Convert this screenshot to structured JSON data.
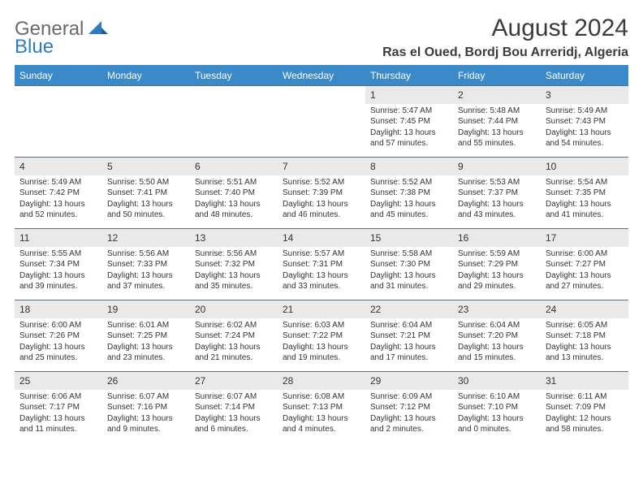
{
  "brand": {
    "line1": "General",
    "line2": "Blue"
  },
  "title": "August 2024",
  "location": "Ras el Oued, Bordj Bou Arreridj, Algeria",
  "colors": {
    "header_bg": "#3a89c9",
    "header_text": "#ffffff",
    "daynum_bg": "#e9e9e9",
    "rule": "#5a6f82",
    "text": "#333333",
    "logo_gray": "#6a6a6a",
    "logo_blue": "#2d7bc0"
  },
  "day_headers": [
    "Sunday",
    "Monday",
    "Tuesday",
    "Wednesday",
    "Thursday",
    "Friday",
    "Saturday"
  ],
  "weeks": [
    [
      null,
      null,
      null,
      null,
      {
        "n": "1",
        "sr": "5:47 AM",
        "ss": "7:45 PM",
        "dl": "13 hours and 57 minutes."
      },
      {
        "n": "2",
        "sr": "5:48 AM",
        "ss": "7:44 PM",
        "dl": "13 hours and 55 minutes."
      },
      {
        "n": "3",
        "sr": "5:49 AM",
        "ss": "7:43 PM",
        "dl": "13 hours and 54 minutes."
      }
    ],
    [
      {
        "n": "4",
        "sr": "5:49 AM",
        "ss": "7:42 PM",
        "dl": "13 hours and 52 minutes."
      },
      {
        "n": "5",
        "sr": "5:50 AM",
        "ss": "7:41 PM",
        "dl": "13 hours and 50 minutes."
      },
      {
        "n": "6",
        "sr": "5:51 AM",
        "ss": "7:40 PM",
        "dl": "13 hours and 48 minutes."
      },
      {
        "n": "7",
        "sr": "5:52 AM",
        "ss": "7:39 PM",
        "dl": "13 hours and 46 minutes."
      },
      {
        "n": "8",
        "sr": "5:52 AM",
        "ss": "7:38 PM",
        "dl": "13 hours and 45 minutes."
      },
      {
        "n": "9",
        "sr": "5:53 AM",
        "ss": "7:37 PM",
        "dl": "13 hours and 43 minutes."
      },
      {
        "n": "10",
        "sr": "5:54 AM",
        "ss": "7:35 PM",
        "dl": "13 hours and 41 minutes."
      }
    ],
    [
      {
        "n": "11",
        "sr": "5:55 AM",
        "ss": "7:34 PM",
        "dl": "13 hours and 39 minutes."
      },
      {
        "n": "12",
        "sr": "5:56 AM",
        "ss": "7:33 PM",
        "dl": "13 hours and 37 minutes."
      },
      {
        "n": "13",
        "sr": "5:56 AM",
        "ss": "7:32 PM",
        "dl": "13 hours and 35 minutes."
      },
      {
        "n": "14",
        "sr": "5:57 AM",
        "ss": "7:31 PM",
        "dl": "13 hours and 33 minutes."
      },
      {
        "n": "15",
        "sr": "5:58 AM",
        "ss": "7:30 PM",
        "dl": "13 hours and 31 minutes."
      },
      {
        "n": "16",
        "sr": "5:59 AM",
        "ss": "7:29 PM",
        "dl": "13 hours and 29 minutes."
      },
      {
        "n": "17",
        "sr": "6:00 AM",
        "ss": "7:27 PM",
        "dl": "13 hours and 27 minutes."
      }
    ],
    [
      {
        "n": "18",
        "sr": "6:00 AM",
        "ss": "7:26 PM",
        "dl": "13 hours and 25 minutes."
      },
      {
        "n": "19",
        "sr": "6:01 AM",
        "ss": "7:25 PM",
        "dl": "13 hours and 23 minutes."
      },
      {
        "n": "20",
        "sr": "6:02 AM",
        "ss": "7:24 PM",
        "dl": "13 hours and 21 minutes."
      },
      {
        "n": "21",
        "sr": "6:03 AM",
        "ss": "7:22 PM",
        "dl": "13 hours and 19 minutes."
      },
      {
        "n": "22",
        "sr": "6:04 AM",
        "ss": "7:21 PM",
        "dl": "13 hours and 17 minutes."
      },
      {
        "n": "23",
        "sr": "6:04 AM",
        "ss": "7:20 PM",
        "dl": "13 hours and 15 minutes."
      },
      {
        "n": "24",
        "sr": "6:05 AM",
        "ss": "7:18 PM",
        "dl": "13 hours and 13 minutes."
      }
    ],
    [
      {
        "n": "25",
        "sr": "6:06 AM",
        "ss": "7:17 PM",
        "dl": "13 hours and 11 minutes."
      },
      {
        "n": "26",
        "sr": "6:07 AM",
        "ss": "7:16 PM",
        "dl": "13 hours and 9 minutes."
      },
      {
        "n": "27",
        "sr": "6:07 AM",
        "ss": "7:14 PM",
        "dl": "13 hours and 6 minutes."
      },
      {
        "n": "28",
        "sr": "6:08 AM",
        "ss": "7:13 PM",
        "dl": "13 hours and 4 minutes."
      },
      {
        "n": "29",
        "sr": "6:09 AM",
        "ss": "7:12 PM",
        "dl": "13 hours and 2 minutes."
      },
      {
        "n": "30",
        "sr": "6:10 AM",
        "ss": "7:10 PM",
        "dl": "13 hours and 0 minutes."
      },
      {
        "n": "31",
        "sr": "6:11 AM",
        "ss": "7:09 PM",
        "dl": "12 hours and 58 minutes."
      }
    ]
  ],
  "labels": {
    "sunrise": "Sunrise:",
    "sunset": "Sunset:",
    "daylight": "Daylight:"
  }
}
